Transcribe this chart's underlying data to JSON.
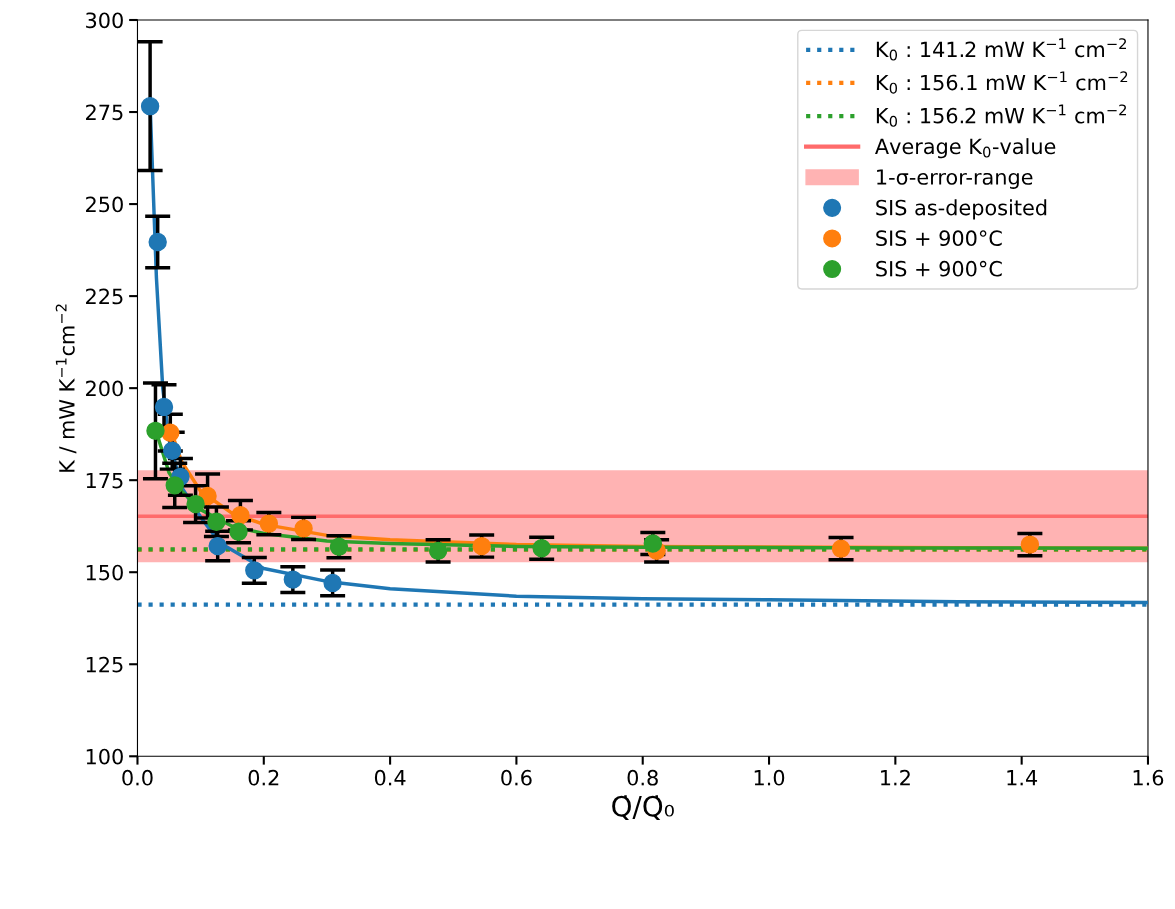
{
  "chart_data": {
    "type": "scatter",
    "xlabel": "Q̇/Q̇₀",
    "ylabel": "K / mW K$^{−1}$cm$^{−2}$",
    "xlim": [
      0,
      1.6
    ],
    "ylim": [
      100,
      300
    ],
    "xticks": [
      {
        "value": 0,
        "label": "0.0"
      },
      0.2,
      0.4,
      0.6,
      0.8,
      {
        "value": 1.0,
        "label": "1.0"
      },
      1.2,
      1.4,
      1.6
    ],
    "yticks": [
      100,
      125,
      150,
      175,
      200,
      225,
      250,
      275,
      300
    ],
    "grid": false,
    "legend": "top right",
    "marker": "circle",
    "ref_lines": [
      {
        "axis": "y",
        "value": 141.2,
        "label": "K$_{0}$ : 141.2 mW K$^{−1}$ cm$^{−2}$",
        "color": "#1f77b4",
        "line_style": "dotted"
      },
      {
        "axis": "y",
        "value": 156.1,
        "label": "K$_{0}$ : 156.1 mW K$^{−1}$ cm$^{−2}$",
        "color": "#ff7f0e",
        "line_style": "dotted"
      },
      {
        "axis": "y",
        "value": 156.2,
        "label": "K$_{0}$ : 156.2 mW K$^{−1}$ cm$^{−2}$",
        "color": "#2ca02c",
        "line_style": "dotted"
      },
      {
        "axis": "y",
        "value": 165.2,
        "label": "Average K$_{0}$-value",
        "color": "#ff6b6b",
        "line_style": "solid"
      }
    ],
    "bands": [
      {
        "axis": "y",
        "from": 152.7,
        "to": 177.7,
        "label": "1-σ-error-range",
        "color": "#ffb3b3"
      }
    ],
    "series": [
      {
        "type": "line",
        "marker": "none",
        "color": "#1f77b4",
        "x": [
          0.02,
          0.03,
          0.04,
          0.05,
          0.07,
          0.1,
          0.13,
          0.2,
          0.3,
          0.4,
          0.6,
          0.8,
          1.0,
          1.3,
          1.6
        ],
        "values": [
          277,
          230,
          200,
          186,
          173,
          165,
          158,
          151,
          147.5,
          145.5,
          143.5,
          142.8,
          142.5,
          142,
          141.8
        ]
      },
      {
        "type": "line",
        "marker": "none",
        "color": "#ff7f0e",
        "x": [
          0.05,
          0.07,
          0.1,
          0.15,
          0.2,
          0.3,
          0.4,
          0.6,
          0.8,
          1.2,
          1.6
        ],
        "values": [
          190,
          180,
          172,
          166,
          163,
          160,
          158.8,
          157.5,
          157,
          156.7,
          156.5
        ]
      },
      {
        "type": "line",
        "marker": "none",
        "color": "#2ca02c",
        "x": [
          0.03,
          0.05,
          0.07,
          0.1,
          0.15,
          0.2,
          0.3,
          0.4,
          0.6,
          0.8,
          1.2,
          1.6
        ],
        "values": [
          188,
          177,
          172,
          167,
          162.5,
          160.5,
          158.5,
          157.8,
          157,
          156.8,
          156.6,
          156.5
        ]
      },
      {
        "name": "SIS as-deposited",
        "color": "#1f77b4",
        "x": [
          0.02,
          0.032,
          0.042,
          0.055,
          0.068,
          0.127,
          0.185,
          0.246,
          0.309
        ],
        "values": [
          276.6,
          239.7,
          194.9,
          183.0,
          175.9,
          157.1,
          150.5,
          148.0,
          147.1
        ],
        "errors": [
          17.5,
          7,
          6,
          5,
          5,
          4,
          3.5,
          3.5,
          3.5
        ]
      },
      {
        "name": "SIS + 900°C",
        "color": "#ff7f0e",
        "x": [
          0.052,
          0.111,
          0.163,
          0.208,
          0.263,
          0.545,
          0.822,
          1.114,
          1.413
        ],
        "values": [
          187.9,
          170.7,
          165.5,
          163.2,
          161.9,
          157.1,
          155.8,
          156.4,
          157.5
        ],
        "errors": [
          5,
          6,
          4,
          3,
          3,
          3,
          3,
          3,
          3
        ]
      },
      {
        "name": "SIS + 900°C",
        "color": "#2ca02c",
        "x": [
          0.0285,
          0.059,
          0.092,
          0.125,
          0.16,
          0.319,
          0.476,
          0.64,
          0.816
        ],
        "values": [
          188.4,
          173.6,
          168.5,
          163.7,
          161.0,
          156.9,
          155.8,
          156.5,
          157.8
        ],
        "errors": [
          13,
          6,
          5,
          4,
          3,
          3,
          3,
          3,
          3
        ]
      }
    ]
  }
}
